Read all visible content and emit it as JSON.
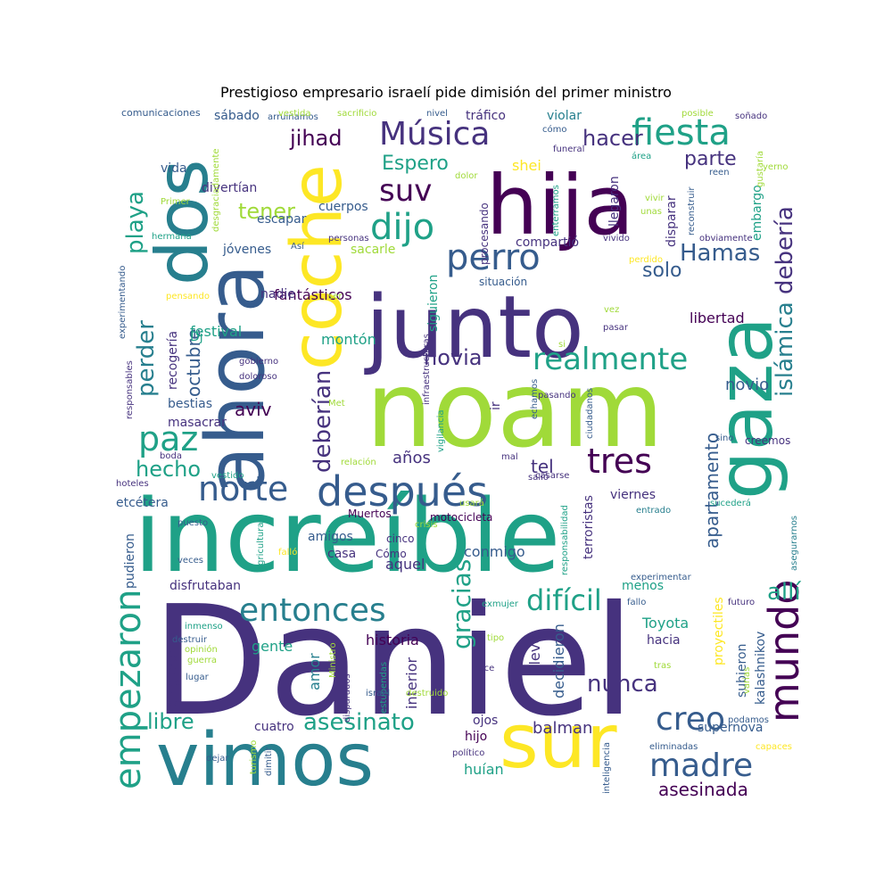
{
  "title": "Prestigioso empresario israelí pide dimisión del primer ministro",
  "palette": [
    "#440154",
    "#46327e",
    "#365c8d",
    "#277f8e",
    "#1fa187",
    "#4ac16d",
    "#a0da39",
    "#fde725"
  ],
  "words": [
    "Daniel",
    "increíble",
    "noam",
    "junto",
    "hija",
    "ahora",
    "gaza",
    "dos",
    "coche",
    "vimos",
    "sur",
    "después",
    "Música",
    "fiesta",
    "entonces",
    "difícil",
    "mundo",
    "empezaron",
    "norte",
    "perro",
    "dijo",
    "suv",
    "tres",
    "madre",
    "creo",
    "paz",
    "realmente",
    "deberían",
    "debería",
    "islámica",
    "Hamas",
    "hacer",
    "jihad",
    "Espero",
    "parte",
    "playa",
    "perder",
    "hecho",
    "nunca",
    "gracias",
    "libre",
    "asesinato",
    "asesinada",
    "allí",
    "tener",
    "novia",
    "solo",
    "aviv",
    "octubre",
    "apartamento",
    "balman",
    "historia",
    "conmigo",
    "aquel",
    "años",
    "tel",
    "novio",
    "shei",
    "festival",
    "fantásticos",
    "montón",
    "libertad",
    "Toyota",
    "hacia",
    "menos",
    "llevó",
    "decidieron",
    "interior",
    "amor",
    "gente",
    "dirigieron",
    "pudieron",
    "kalashnikov",
    "subieron",
    "proyectiles",
    "supernova",
    "ojos",
    "hijo",
    "huían",
    "cuatro",
    "sábado",
    "tráfico",
    "violar",
    "vida",
    "divertían",
    "jóvenes",
    "escapar",
    "cuerpos",
    "sacarle",
    "compartió",
    "nadie",
    "recogería",
    "bestias",
    "masacrar",
    "etcétera",
    "amigos",
    "casa",
    "cinco",
    "Cómo",
    "viernes",
    "terroristas",
    "disfrutaban",
    "Muertos",
    "motocicleta",
    "creemos",
    "Dj",
    "situación",
    "siguieron",
    "ir",
    "embargo",
    "disparar",
    "llegaron",
    "procesando",
    "comunicaciones",
    "arruinamos",
    "vestida",
    "sacrificio",
    "nivel",
    "cómo",
    "funeral",
    "posible",
    "soñado",
    "área",
    "reen",
    "vivir",
    "unas",
    "Primer",
    "hermana",
    "Así",
    "personas",
    "vivido",
    "obviamente",
    "perdido",
    "experimentando",
    "pensando",
    "ser",
    "responsables",
    "gobierno",
    "doloroso",
    "Met",
    "infraestructuras",
    "vigilancia",
    "echamos",
    "pasando",
    "ciudadanos",
    "pasar",
    "vez",
    "si",
    "relación",
    "usará",
    "mal",
    "casarse",
    "sino",
    "salió",
    "boda",
    "vestido",
    "hoteles",
    "crisis",
    "responsabilidad",
    "entrado",
    "sucederá",
    "asegurarnos",
    "puesto",
    "veces",
    "agricultura",
    "falló",
    "experimentar",
    "exmujer",
    "fallo",
    "futuro",
    "inmenso",
    "destruir",
    "opinión",
    "guerra",
    "lugar",
    "Ministro",
    "tipo",
    "estupendas",
    "disparados",
    "Hace",
    "tras",
    "dimitir",
    "turismo",
    "político",
    "inteligencia",
    "eliminadas",
    "podamos",
    "capaces",
    "varias",
    "dejar",
    "israel",
    "destruido",
    "dolor",
    "enterramos",
    "reconstruir",
    "gustaría",
    "yerno",
    "desgraciadamente"
  ]
}
